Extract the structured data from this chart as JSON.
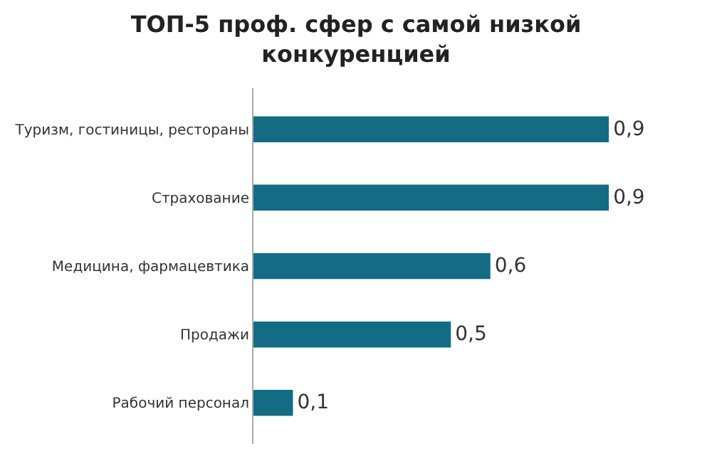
{
  "chart_data": {
    "type": "bar",
    "orientation": "horizontal",
    "title": "ТОП-5 проф. сфер с самой низкой\nконкуренцией",
    "categories": [
      "Туризм, гостиницы, рестораны",
      "Страхование",
      "Медицина, фармацевтика",
      "Продажи",
      "Рабочий персонал"
    ],
    "values": [
      0.9,
      0.9,
      0.6,
      0.5,
      0.1
    ],
    "value_labels": [
      "0,9",
      "0,9",
      "0,6",
      "0,5",
      "0,1"
    ],
    "color": "#146b84"
  }
}
